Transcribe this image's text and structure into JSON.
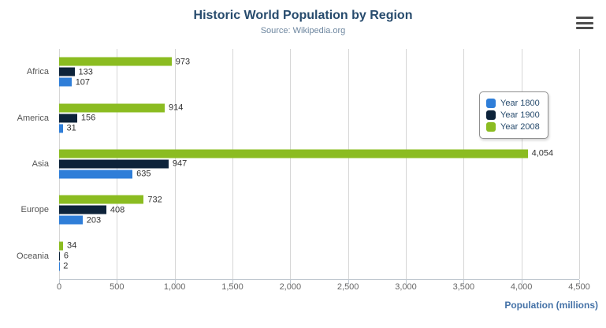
{
  "header": {
    "title": "Historic World Population by Region",
    "subtitle": "Source: Wikipedia.org"
  },
  "colors": {
    "title": "#274b6d",
    "subtitle": "#6d869f",
    "axis_title": "#4572a7",
    "series_year_1800": "#2f7ed8",
    "series_year_1900": "#0d233a",
    "series_year_2008": "#8bbc21"
  },
  "chart_data": {
    "type": "bar",
    "orientation": "horizontal",
    "title": "Historic World Population by Region",
    "subtitle": "Source: Wikipedia.org",
    "categories": [
      "Africa",
      "America",
      "Asia",
      "Europe",
      "Oceania"
    ],
    "series": [
      {
        "name": "Year 1800",
        "color": "#2f7ed8",
        "values": [
          107,
          31,
          635,
          203,
          2
        ]
      },
      {
        "name": "Year 1900",
        "color": "#0d233a",
        "values": [
          133,
          156,
          947,
          408,
          6
        ]
      },
      {
        "name": "Year 2008",
        "color": "#8bbc21",
        "values": [
          973,
          914,
          4054,
          732,
          34
        ]
      }
    ],
    "bar_order_top_to_bottom": [
      "Year 2008",
      "Year 1900",
      "Year 1800"
    ],
    "data_labels": true,
    "xlabel": "Population (millions)",
    "ylabel": "",
    "xlim": [
      0,
      4500
    ],
    "xticks": [
      0,
      500,
      1000,
      1500,
      2000,
      2500,
      3000,
      3500,
      4000,
      4500
    ],
    "xtick_labels": [
      "0",
      "500",
      "1,000",
      "1,500",
      "2,000",
      "2,500",
      "3,000",
      "3,500",
      "4,000",
      "4,500"
    ],
    "grid": true,
    "legend": {
      "position": "right",
      "items": [
        "Year 1800",
        "Year 1900",
        "Year 2008"
      ]
    }
  }
}
